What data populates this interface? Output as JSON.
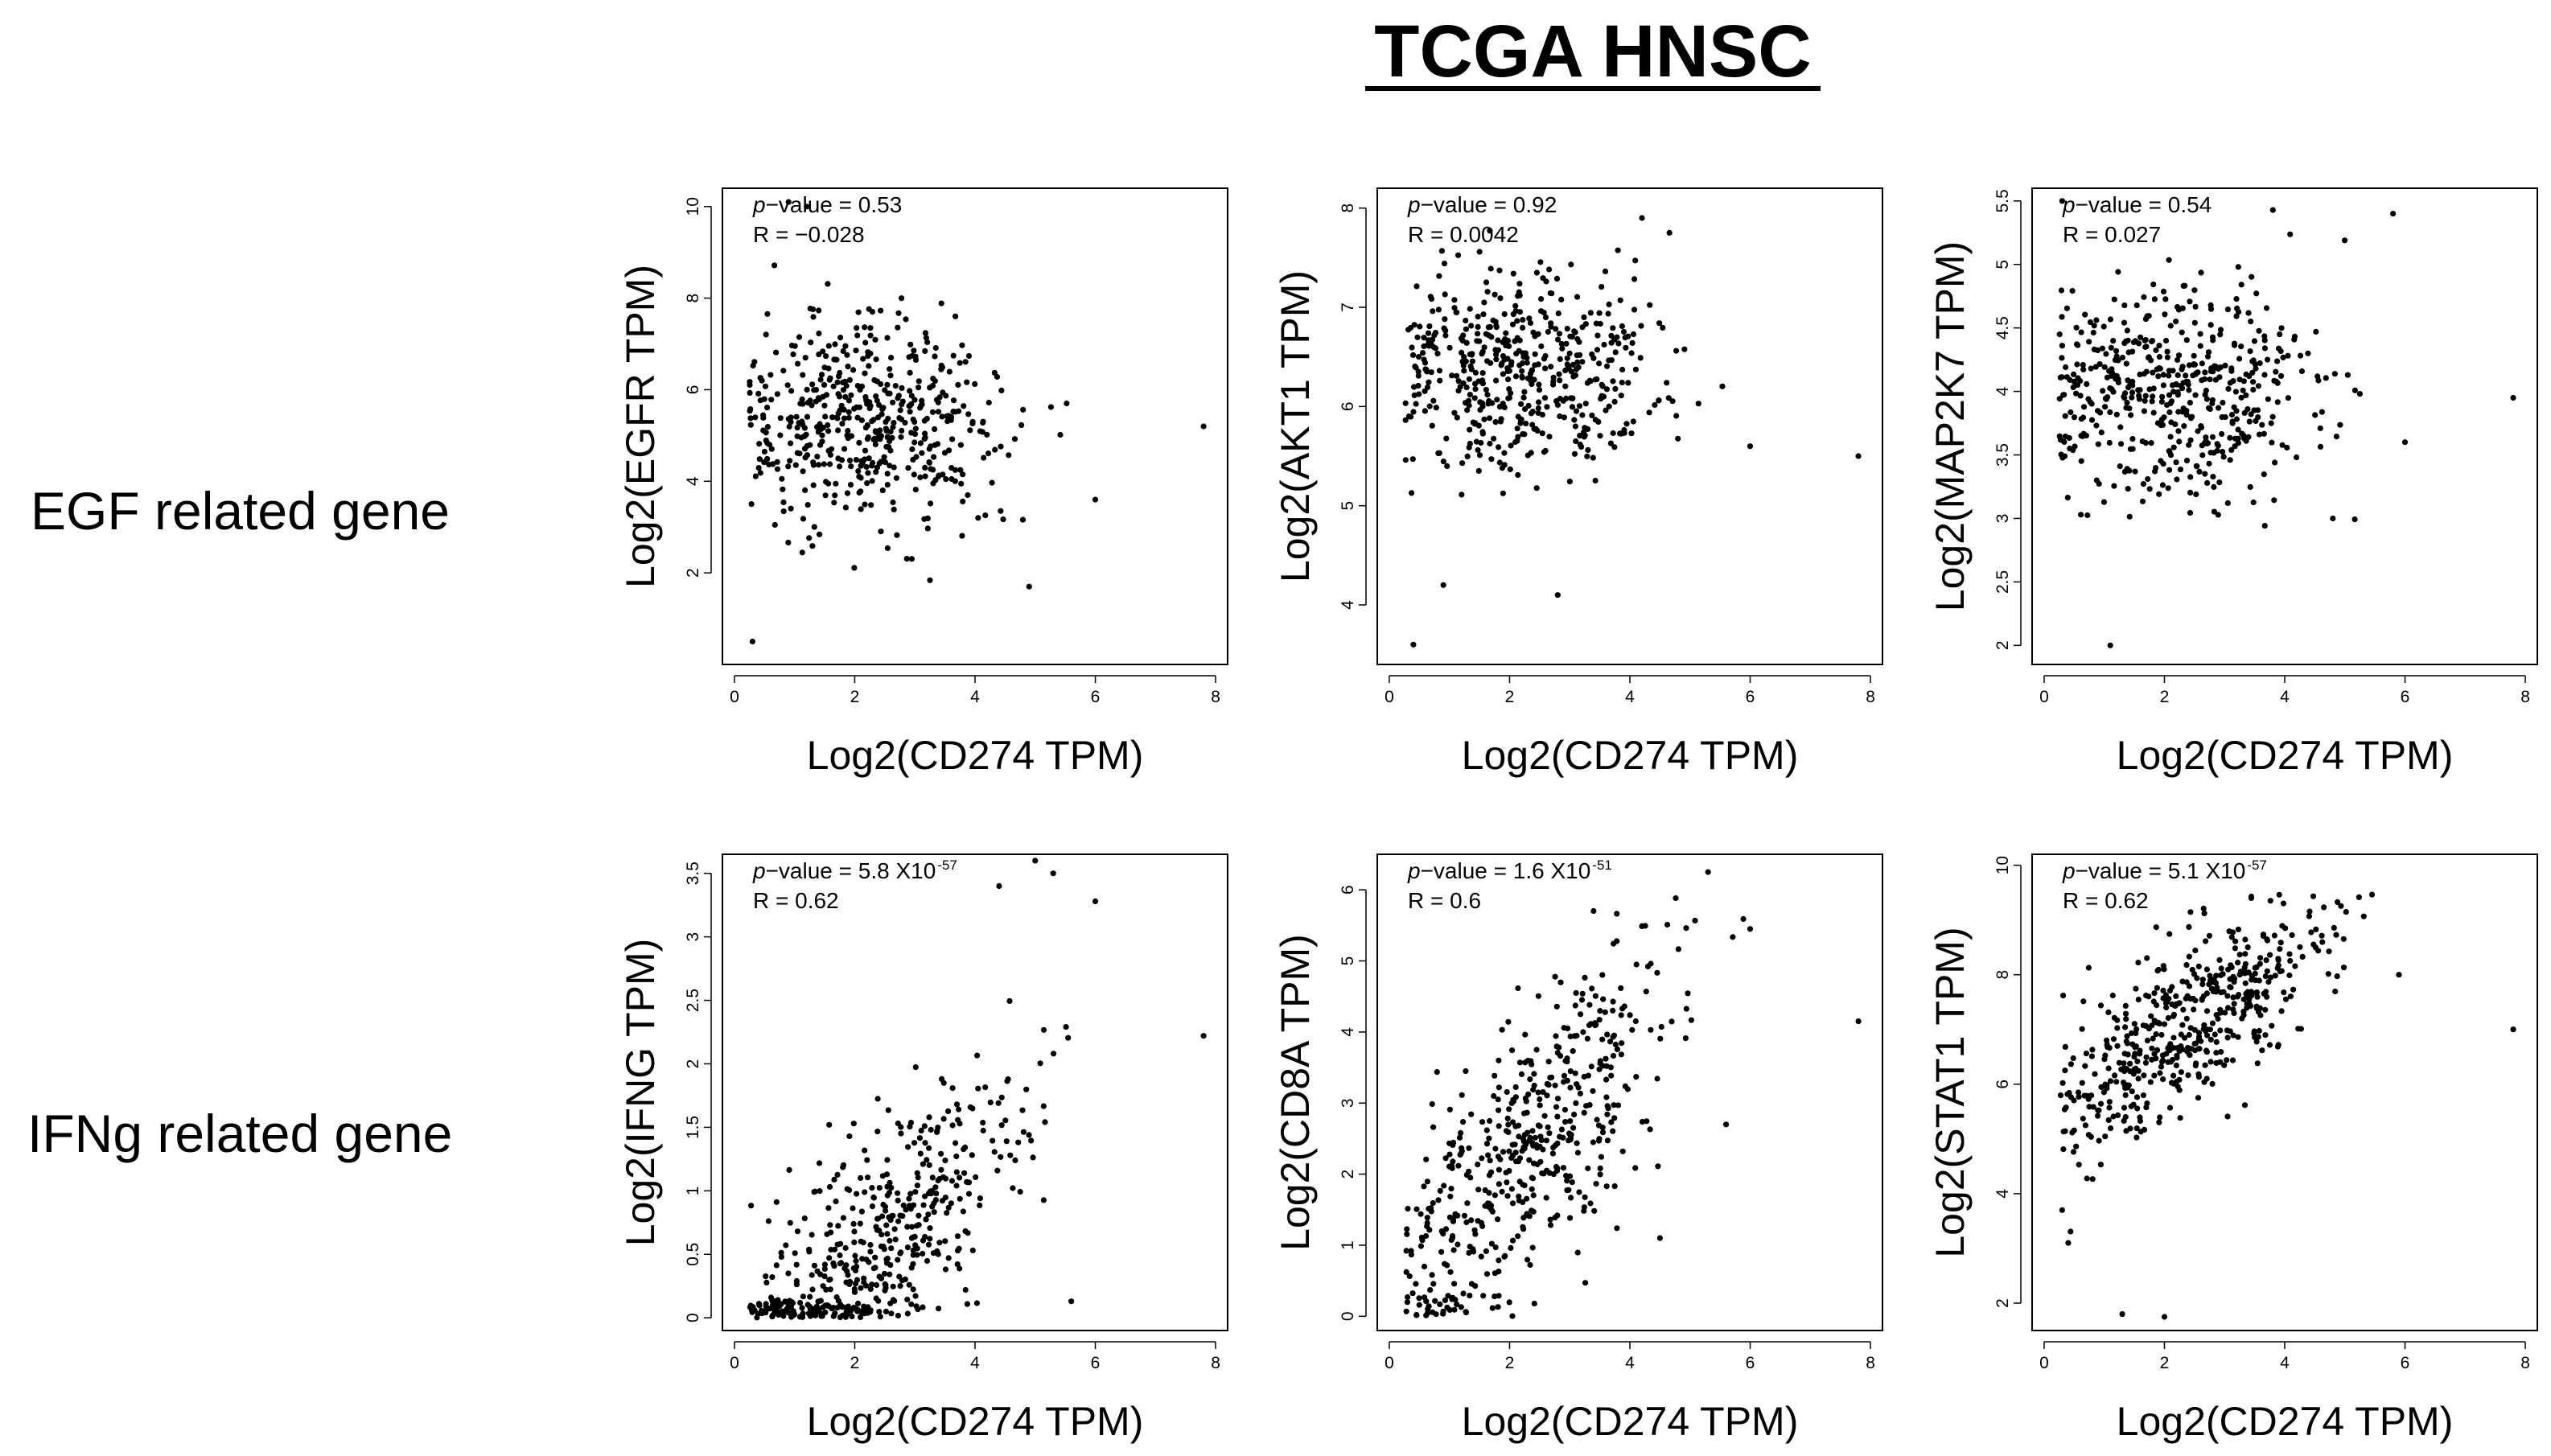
{
  "figure_title": "TCGA HNSC",
  "row_labels": [
    "EGF related gene",
    "IFNg related gene"
  ],
  "colors": {
    "points": "#000000",
    "frame": "#000000",
    "background": "#ffffff"
  },
  "chart_data": [
    {
      "type": "scatter",
      "row": 0,
      "col": 0,
      "gene": "EGFR",
      "xlabel": "Log2(CD274 TPM)",
      "ylabel": "Log2(EGFR TPM)",
      "p_label": "p",
      "p_text": "−value = 0.53",
      "p_sup": "",
      "r_text": "R = −0.028",
      "xlim": [
        -0.2,
        8.2
      ],
      "ylim": [
        0.0,
        10.4
      ],
      "xticks": [
        0,
        2,
        4,
        6,
        8
      ],
      "yticks": [
        2,
        4,
        6,
        8,
        10
      ],
      "cluster": {
        "x_mean": 2.2,
        "x_sd": 1.2,
        "y_base": 5.3,
        "slope": 0.0,
        "noise_sd": 1.1,
        "ymin": 0.5,
        "ymax": 10.3,
        "n": 500
      },
      "extra_points": [
        [
          0.3,
          0.5
        ],
        [
          7.8,
          5.2
        ],
        [
          6.0,
          3.6
        ],
        [
          4.9,
          1.7
        ],
        [
          0.9,
          10.1
        ],
        [
          1.2,
          10.0
        ]
      ]
    },
    {
      "type": "scatter",
      "row": 0,
      "col": 1,
      "gene": "AKT1",
      "xlabel": "Log2(CD274 TPM)",
      "ylabel": "Log2(AKT1 TPM)",
      "p_label": "p",
      "p_text": "−value = 0.92",
      "p_sup": "",
      "r_text": "R = 0.0042",
      "xlim": [
        -0.2,
        8.2
      ],
      "ylim": [
        3.4,
        8.2
      ],
      "xticks": [
        0,
        2,
        4,
        6,
        8
      ],
      "yticks": [
        4,
        5,
        6,
        7,
        8
      ],
      "cluster": {
        "x_mean": 2.2,
        "x_sd": 1.2,
        "y_base": 6.35,
        "slope": 0.0,
        "noise_sd": 0.55,
        "ymin": 3.6,
        "ymax": 8.0,
        "n": 500
      },
      "extra_points": [
        [
          0.4,
          3.6
        ],
        [
          7.8,
          5.5
        ],
        [
          6.0,
          5.6
        ],
        [
          2.8,
          4.1
        ],
        [
          0.9,
          4.2
        ],
        [
          4.2,
          7.9
        ]
      ]
    },
    {
      "type": "scatter",
      "row": 0,
      "col": 2,
      "gene": "MAP2K7",
      "xlabel": "Log2(CD274 TPM)",
      "ylabel": "Log2(MAP2K7 TPM)",
      "p_label": "p",
      "p_text": "−value = 0.54",
      "p_sup": "",
      "r_text": "R = 0.027",
      "xlim": [
        -0.2,
        8.2
      ],
      "ylim": [
        1.85,
        5.6
      ],
      "xticks": [
        0,
        2,
        4,
        6,
        8
      ],
      "yticks": [
        2.0,
        2.5,
        3.0,
        3.5,
        4.0,
        4.5,
        5.0,
        5.5
      ],
      "cluster": {
        "x_mean": 2.2,
        "x_sd": 1.2,
        "y_base": 3.95,
        "slope": 0.0,
        "noise_sd": 0.42,
        "ymin": 2.0,
        "ymax": 5.5,
        "n": 500
      },
      "extra_points": [
        [
          1.1,
          2.0
        ],
        [
          5.8,
          5.4
        ],
        [
          7.8,
          3.95
        ],
        [
          0.3,
          5.5
        ],
        [
          6.0,
          3.6
        ],
        [
          4.8,
          3.0
        ]
      ]
    },
    {
      "type": "scatter",
      "row": 1,
      "col": 0,
      "gene": "IFNG",
      "xlabel": "Log2(CD274 TPM)",
      "ylabel": "Log2(IFNG TPM)",
      "p_label": "p",
      "p_text": "−value = 5.8 X10",
      "p_sup": "-57",
      "r_text": "R = 0.62",
      "xlim": [
        -0.2,
        8.2
      ],
      "ylim": [
        -0.1,
        3.65
      ],
      "xticks": [
        0,
        2,
        4,
        6,
        8
      ],
      "yticks": [
        0.0,
        0.5,
        1.0,
        1.5,
        2.0,
        2.5,
        3.0,
        3.5
      ],
      "cluster": {
        "x_mean": 2.3,
        "x_sd": 1.2,
        "y_base": -0.55,
        "slope": 0.45,
        "noise_sd": 0.45,
        "ymin": 0.0,
        "ymax": 3.6,
        "n": 500
      },
      "extra_points": [
        [
          7.8,
          2.22
        ],
        [
          5.0,
          3.6
        ],
        [
          5.3,
          3.5
        ],
        [
          6.0,
          3.28
        ],
        [
          4.4,
          3.4
        ],
        [
          5.6,
          0.13
        ]
      ]
    },
    {
      "type": "scatter",
      "row": 1,
      "col": 1,
      "gene": "CD8A",
      "xlabel": "Log2(CD274 TPM)",
      "ylabel": "Log2(CD8A TPM)",
      "p_label": "p",
      "p_text": "−value = 1.6 X10",
      "p_sup": "-51",
      "r_text": "R = 0.6",
      "xlim": [
        -0.2,
        8.2
      ],
      "ylim": [
        -0.2,
        6.5
      ],
      "xticks": [
        0,
        2,
        4,
        6,
        8
      ],
      "yticks": [
        0,
        1,
        2,
        3,
        4,
        5,
        6
      ],
      "cluster": {
        "x_mean": 2.3,
        "x_sd": 1.2,
        "y_base": 0.4,
        "slope": 0.85,
        "noise_sd": 1.0,
        "ymin": 0.0,
        "ymax": 6.3,
        "n": 500
      },
      "extra_points": [
        [
          7.8,
          4.15
        ],
        [
          5.3,
          6.25
        ],
        [
          6.0,
          5.45
        ],
        [
          4.5,
          1.1
        ],
        [
          5.6,
          2.7
        ],
        [
          0.3,
          0.2
        ]
      ]
    },
    {
      "type": "scatter",
      "row": 1,
      "col": 2,
      "gene": "STAT1",
      "xlabel": "Log2(CD274 TPM)",
      "ylabel": "Log2(STAT1 TPM)",
      "p_label": "p",
      "p_text": "−value = 5.1 X10",
      "p_sup": "-57",
      "r_text": "R = 0.62",
      "xlim": [
        -0.2,
        8.2
      ],
      "ylim": [
        1.5,
        10.2
      ],
      "xticks": [
        0,
        2,
        4,
        6,
        8
      ],
      "yticks": [
        2,
        4,
        6,
        8,
        10
      ],
      "cluster": {
        "x_mean": 2.5,
        "x_sd": 1.2,
        "y_base": 5.2,
        "slope": 0.75,
        "noise_sd": 0.75,
        "ymin": 3.0,
        "ymax": 9.5,
        "n": 500
      },
      "extra_points": [
        [
          1.3,
          1.8
        ],
        [
          2.0,
          1.75
        ],
        [
          7.8,
          7.0
        ],
        [
          0.3,
          3.7
        ],
        [
          0.4,
          3.1
        ],
        [
          5.9,
          8.0
        ]
      ]
    }
  ]
}
